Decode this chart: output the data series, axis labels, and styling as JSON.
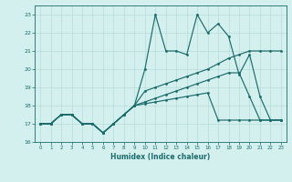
{
  "xlabel": "Humidex (Indice chaleur)",
  "x_values": [
    0,
    1,
    2,
    3,
    4,
    5,
    6,
    7,
    8,
    9,
    10,
    11,
    12,
    13,
    14,
    15,
    16,
    17,
    18,
    19,
    20,
    21,
    22,
    23
  ],
  "line1": [
    17,
    17,
    17.5,
    17.5,
    17,
    17,
    16.5,
    17,
    17.5,
    18,
    20,
    23,
    21,
    21,
    20.8,
    23,
    22,
    22.5,
    21.8,
    19.7,
    20.8,
    18.5,
    17.2,
    17.2
  ],
  "line2": [
    17,
    17,
    17.5,
    17.5,
    17,
    17,
    16.5,
    17,
    17.5,
    18,
    18.8,
    19.0,
    19.2,
    19.4,
    19.6,
    19.8,
    20.0,
    20.3,
    20.6,
    20.8,
    21.0,
    21.0,
    21.0,
    21.0
  ],
  "line3": [
    17,
    17,
    17.5,
    17.5,
    17,
    17,
    16.5,
    17,
    17.5,
    18,
    18.1,
    18.2,
    18.3,
    18.4,
    18.5,
    18.6,
    18.7,
    17.2,
    17.2,
    17.2,
    17.2,
    17.2,
    17.2,
    17.2
  ],
  "line4": [
    17,
    17,
    17.5,
    17.5,
    17,
    17,
    16.5,
    17,
    17.5,
    18,
    18.2,
    18.4,
    18.6,
    18.8,
    19.0,
    19.2,
    19.4,
    19.6,
    19.8,
    19.8,
    18.5,
    17.2,
    17.2,
    17.2
  ],
  "bg_color": "#d4f0ee",
  "grid_color": "#b8dcd8",
  "line_color": "#1a6b6b",
  "ylim": [
    16,
    23.5
  ],
  "xlim": [
    -0.5,
    23.5
  ],
  "yticks": [
    16,
    17,
    18,
    19,
    20,
    21,
    22,
    23
  ],
  "xticks": [
    0,
    1,
    2,
    3,
    4,
    5,
    6,
    7,
    8,
    9,
    10,
    11,
    12,
    13,
    14,
    15,
    16,
    17,
    18,
    19,
    20,
    21,
    22,
    23
  ]
}
